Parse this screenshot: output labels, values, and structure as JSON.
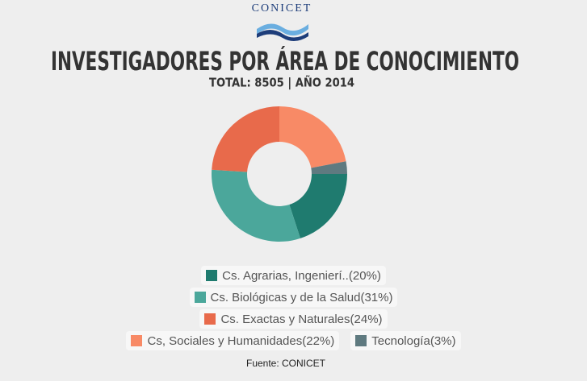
{
  "logo": "CONICET",
  "chart_data": {
    "type": "donut",
    "title": "INVESTIGADORES POR ÁREA DE CONOCIMIENTO",
    "subtitle": "TOTAL: 8505 | AÑO 2014",
    "source": "Fuente: CONICET",
    "categories": [
      "Cs. Agrarias, Ingenierí..",
      "Cs. Biológicas y de la Salud",
      "Cs. Exactas y Naturales",
      "Cs, Sociales y Humanidades",
      "Tecnología"
    ],
    "values": [
      20,
      31,
      24,
      22,
      3
    ],
    "value_labels": [
      "(20%)",
      "(31%)",
      "(24%)",
      "(22%)",
      "(3%)"
    ],
    "colors": [
      "#1f7b6f",
      "#4ba79b",
      "#e86a4b",
      "#f88a66",
      "#5f7a80"
    ]
  }
}
